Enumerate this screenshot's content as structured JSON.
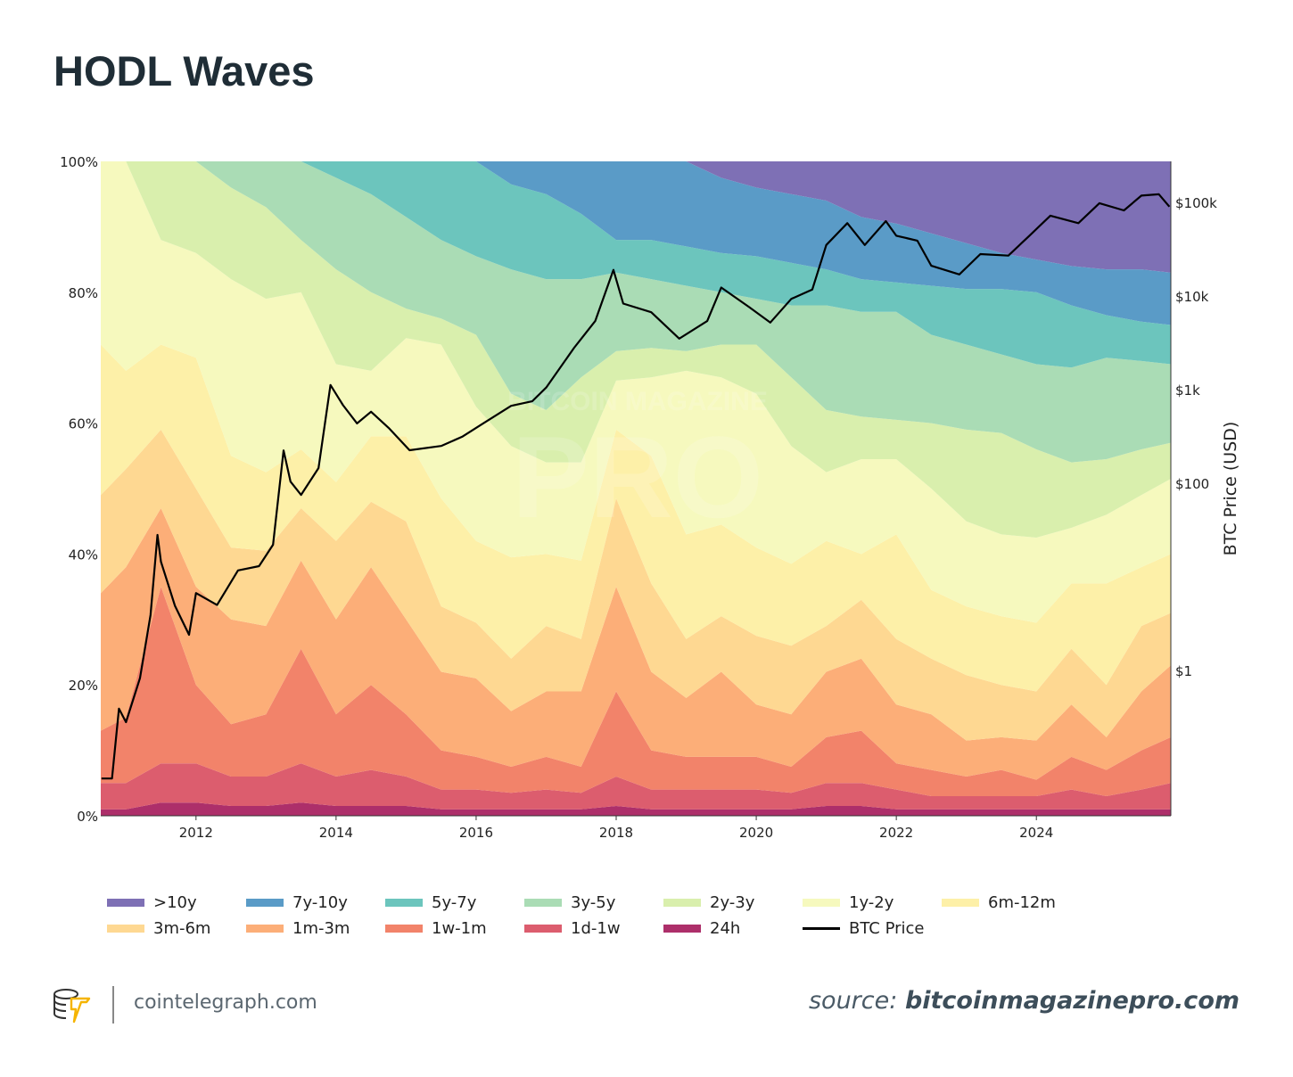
{
  "title": "HODL Waves",
  "footer": {
    "site": "cointelegraph.com",
    "source_prefix": "source:",
    "source_name": "bitcoinmagazinepro.com"
  },
  "watermark": {
    "line1": "BITCOIN MAGAZINE",
    "line2": "PRO"
  },
  "chart_data": {
    "type": "area",
    "stacked": true,
    "ylabel_right": "BTC Price (USD)",
    "ylim_left": [
      0,
      100
    ],
    "left_ticks": [
      "0%",
      "20%",
      "40%",
      "60%",
      "80%",
      "100%"
    ],
    "left_tick_values": [
      0,
      20,
      40,
      60,
      80,
      100
    ],
    "right_scale": "log",
    "right_ticks": [
      "$1",
      "$100",
      "$1k",
      "$10k",
      "$100k"
    ],
    "right_tick_values": [
      1,
      100,
      1000,
      10000,
      100000
    ],
    "xlim": [
      2010.64,
      2025.92
    ],
    "x_ticks": [
      "2012",
      "2014",
      "2016",
      "2018",
      "2020",
      "2022",
      "2024"
    ],
    "x_tick_values": [
      2012,
      2014,
      2016,
      2018,
      2020,
      2022,
      2024
    ],
    "grid": false,
    "legend_position": "bottom",
    "x": [
      2010.7,
      2011.0,
      2011.5,
      2012.0,
      2012.5,
      2013.0,
      2013.5,
      2014.0,
      2014.5,
      2015.0,
      2015.5,
      2016.0,
      2016.5,
      2017.0,
      2017.5,
      2018.0,
      2018.5,
      2019.0,
      2019.5,
      2020.0,
      2020.5,
      2021.0,
      2021.5,
      2022.0,
      2022.5,
      2023.0,
      2023.5,
      2024.0,
      2024.5,
      2025.0,
      2025.5,
      2025.9
    ],
    "series": [
      {
        "name": ">10y",
        "color": "#7e70b5",
        "values": [
          0,
          0,
          0,
          0,
          0,
          0,
          0,
          0,
          0,
          0,
          0,
          0,
          0,
          0,
          0,
          0,
          0,
          0,
          2.5,
          4,
          5,
          6,
          8.5,
          9.5,
          11,
          12.5,
          14,
          15,
          16,
          16.5,
          16.5,
          17
        ]
      },
      {
        "name": "7y-10y",
        "color": "#5a9bc7",
        "values": [
          0,
          0,
          0,
          0,
          0,
          0,
          0,
          0,
          0,
          0,
          0,
          0,
          3.5,
          5,
          8,
          12,
          12,
          13,
          11.5,
          10.5,
          10.5,
          10.5,
          9.5,
          9,
          8,
          7,
          5.5,
          5,
          6,
          7,
          8,
          8
        ]
      },
      {
        "name": "5y-7y",
        "color": "#6cc5bd",
        "values": [
          0,
          0,
          0,
          0,
          0,
          0,
          0,
          2.5,
          5,
          8.5,
          12,
          14.5,
          13,
          13,
          10,
          5,
          6,
          6,
          6,
          6.5,
          6.5,
          5.5,
          5,
          4.5,
          7.5,
          8.5,
          10,
          11,
          9.5,
          6.5,
          6,
          6
        ]
      },
      {
        "name": "3y-5y",
        "color": "#aadcb5",
        "values": [
          0,
          0,
          0,
          0,
          4,
          7,
          12,
          14,
          15,
          14,
          12,
          12,
          19,
          20,
          15,
          12,
          10.5,
          10,
          8,
          7,
          11,
          16,
          16,
          16.5,
          13.5,
          13,
          12,
          13,
          14.5,
          15.5,
          13.5,
          12
        ]
      },
      {
        "name": "2y-3y",
        "color": "#d9efad",
        "values": [
          0,
          0,
          12,
          14,
          14,
          14,
          8,
          14.5,
          12,
          4.5,
          4,
          11,
          8,
          8,
          13,
          4.5,
          4.5,
          3,
          5,
          7.5,
          10.5,
          9.5,
          6.5,
          6,
          10,
          14,
          15.5,
          13.5,
          10,
          8.5,
          7,
          5.5
        ]
      },
      {
        "name": "1y-2y",
        "color": "#f6f9be",
        "values": [
          28,
          32,
          16,
          16,
          27,
          26.5,
          24,
          18,
          10,
          15,
          23.5,
          20.5,
          17,
          14,
          15,
          7.5,
          12,
          25,
          22.5,
          23.5,
          18,
          10.5,
          14.5,
          11.5,
          15.5,
          13,
          12.5,
          13,
          8.5,
          10.5,
          11,
          11.5
        ]
      },
      {
        "name": "6m-12m",
        "color": "#fdf0a8",
        "values": [
          23,
          15,
          13,
          20,
          14,
          12,
          9,
          9,
          10,
          13,
          16.5,
          12.5,
          15.5,
          11,
          12,
          10.5,
          19.5,
          16,
          14,
          13.5,
          12.5,
          13,
          7,
          16,
          10.5,
          10.5,
          10.5,
          10.5,
          10,
          15.5,
          9,
          9
        ]
      },
      {
        "name": "3m-6m",
        "color": "#fed892",
        "values": [
          15,
          15,
          12,
          15,
          11,
          11.5,
          8,
          12,
          10,
          15,
          10,
          8.5,
          8,
          10,
          8,
          13.5,
          13.5,
          9,
          8.5,
          10.5,
          10.5,
          7,
          9,
          10,
          8.5,
          10,
          8,
          7.5,
          8.5,
          8,
          10,
          8
        ]
      },
      {
        "name": "1m-3m",
        "color": "#fcae78",
        "values": [
          21,
          23,
          12,
          15,
          16,
          13.5,
          13.5,
          14.5,
          18,
          14.5,
          12,
          12,
          8.5,
          10,
          11.5,
          16,
          12,
          9,
          13,
          8,
          8,
          10,
          11,
          9,
          8.5,
          5.5,
          5,
          6,
          8,
          5,
          9,
          11
        ]
      },
      {
        "name": "1w-1m",
        "color": "#f2836a",
        "values": [
          8,
          10,
          27,
          12,
          8,
          9.5,
          17.5,
          9.5,
          13,
          9.5,
          6,
          5,
          4,
          5,
          4,
          13,
          6,
          5,
          5,
          5,
          4,
          7,
          8,
          4,
          4,
          3,
          4,
          2.5,
          5,
          4,
          6,
          7
        ]
      },
      {
        "name": "1d-1w",
        "color": "#dc5d6e",
        "values": [
          4,
          4,
          6,
          6,
          4.5,
          4.5,
          6,
          4.5,
          5.5,
          4.5,
          3,
          3,
          2.5,
          3,
          2.5,
          4.5,
          3,
          3,
          3,
          3,
          2.5,
          3.5,
          3.5,
          3,
          2,
          2,
          2,
          2,
          3,
          2,
          3,
          4
        ]
      },
      {
        "name": "24h",
        "color": "#ad2f6a",
        "values": [
          1,
          1,
          2,
          2,
          1.5,
          1.5,
          2,
          1.5,
          1.5,
          1.5,
          1,
          1,
          1,
          1,
          1,
          1.5,
          1,
          1,
          1,
          1,
          1,
          1.5,
          1.5,
          1,
          1,
          1,
          1,
          1,
          1,
          1,
          1,
          1
        ]
      }
    ],
    "price": {
      "name": "BTC Price",
      "color": "#000000",
      "x": [
        2010.65,
        2010.8,
        2010.9,
        2011.0,
        2011.2,
        2011.35,
        2011.45,
        2011.5,
        2011.7,
        2011.9,
        2012.0,
        2012.3,
        2012.6,
        2012.9,
        2013.1,
        2013.25,
        2013.35,
        2013.5,
        2013.75,
        2013.92,
        2014.1,
        2014.3,
        2014.5,
        2014.75,
        2015.05,
        2015.5,
        2015.8,
        2016.1,
        2016.5,
        2016.8,
        2017.0,
        2017.4,
        2017.7,
        2017.96,
        2018.1,
        2018.5,
        2018.9,
        2019.3,
        2019.5,
        2019.9,
        2020.2,
        2020.5,
        2020.8,
        2021.0,
        2021.3,
        2021.55,
        2021.85,
        2022.0,
        2022.3,
        2022.5,
        2022.9,
        2023.2,
        2023.6,
        2023.9,
        2024.2,
        2024.6,
        2024.9,
        2025.25,
        2025.5,
        2025.75,
        2025.9
      ],
      "values": [
        0.07,
        0.07,
        0.39,
        0.28,
        0.83,
        3.9,
        28,
        14.5,
        4.9,
        2.4,
        6.7,
        5,
        11.7,
        13,
        22,
        224,
        104,
        75,
        145,
        1120,
        680,
        435,
        580,
        390,
        225,
        250,
        313,
        435,
        670,
        750,
        1050,
        2800,
        5400,
        19000,
        8300,
        6700,
        3500,
        5400,
        12300,
        7600,
        5200,
        9300,
        11700,
        35000,
        60000,
        35000,
        63000,
        44000,
        39000,
        21000,
        17000,
        28000,
        27000,
        44000,
        72000,
        60000,
        98000,
        82000,
        118000,
        122000,
        90000
      ]
    },
    "right_range": [
      0.028,
      274000
    ]
  }
}
